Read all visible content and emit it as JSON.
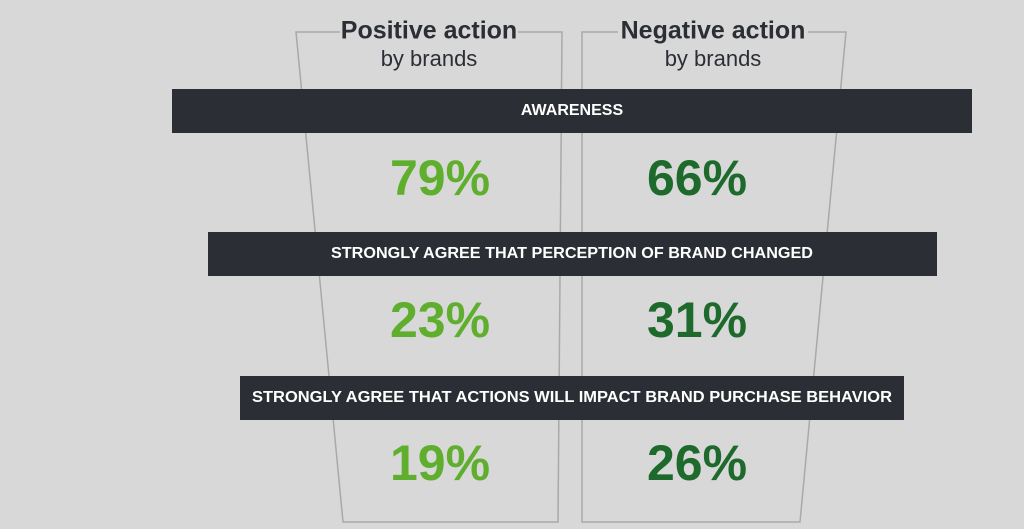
{
  "columns": [
    {
      "title": "Positive action",
      "subtitle": "by brands"
    },
    {
      "title": "Negative action",
      "subtitle": "by brands"
    }
  ],
  "rows": [
    {
      "label": "AWARENESS",
      "values": [
        "79%",
        "66%"
      ]
    },
    {
      "label": "STRONGLY AGREE THAT PERCEPTION OF BRAND CHANGED",
      "values": [
        "23%",
        "31%"
      ]
    },
    {
      "label": "STRONGLY AGREE THAT ACTIONS WILL IMPACT BRAND PURCHASE BEHAVIOR",
      "values": [
        "19%",
        "26%"
      ]
    }
  ]
}
